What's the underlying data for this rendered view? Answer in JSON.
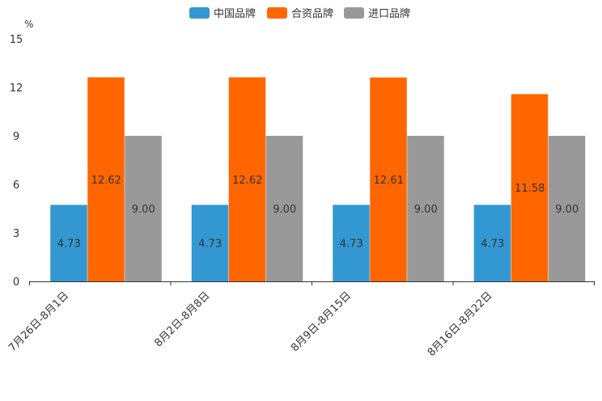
{
  "chart_data": {
    "type": "bar",
    "unit": "%",
    "categories": [
      "7月26日-8月1日",
      "8月2日-8月8日",
      "8月9日-8月15日",
      "8月16日-8月22日"
    ],
    "series": [
      {
        "name": "中国品牌",
        "color": "#3398d1",
        "values": [
          4.73,
          4.73,
          4.73,
          4.73
        ],
        "labels": [
          "4.73",
          "4.73",
          "4.73",
          "4.73"
        ]
      },
      {
        "name": "合资品牌",
        "color": "#ff6600",
        "values": [
          12.62,
          12.62,
          12.61,
          11.58
        ],
        "labels": [
          "12.62",
          "12.62",
          "12.61",
          "11.58"
        ]
      },
      {
        "name": "进口品牌",
        "color": "#999999",
        "values": [
          9.0,
          9.0,
          9.0,
          9.0
        ],
        "labels": [
          "9.00",
          "9.00",
          "9.00",
          "9.00"
        ]
      }
    ],
    "ylim": [
      0,
      15
    ],
    "yticks": [
      0,
      3,
      6,
      9,
      12,
      15
    ],
    "ytick_labels": [
      "0",
      "3",
      "6",
      "9",
      "12",
      "15"
    ],
    "legend_position": "top-center",
    "grid": false
  }
}
